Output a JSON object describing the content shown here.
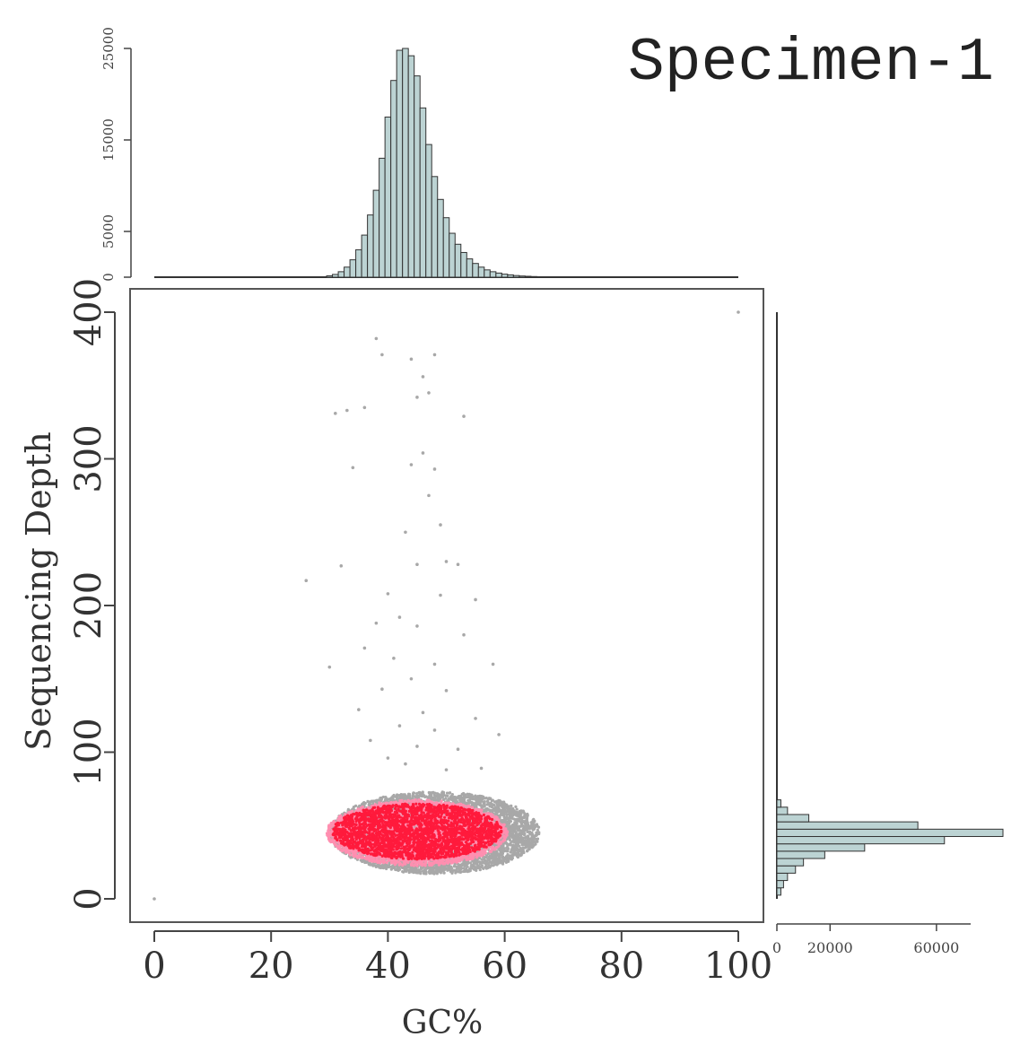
{
  "chart_data": {
    "type": "scatter",
    "title": "Specimen-1",
    "xlabel": "GC%",
    "ylabel": "Sequencing Depth",
    "xlim": [
      0,
      100
    ],
    "ylim": [
      0,
      400
    ],
    "x_ticks": [
      "0",
      "20",
      "40",
      "60",
      "80",
      "100"
    ],
    "y_ticks": [
      "0",
      "100",
      "200",
      "300",
      "400"
    ],
    "marginal_top": {
      "type": "histogram",
      "axis_ticks": [
        "0",
        "5000",
        "15000",
        "25000"
      ],
      "bin_width": 1,
      "bins": [
        {
          "x": 30,
          "count": 150
        },
        {
          "x": 31,
          "count": 300
        },
        {
          "x": 32,
          "count": 600
        },
        {
          "x": 33,
          "count": 1100
        },
        {
          "x": 34,
          "count": 1900
        },
        {
          "x": 35,
          "count": 3000
        },
        {
          "x": 36,
          "count": 4600
        },
        {
          "x": 37,
          "count": 6800
        },
        {
          "x": 38,
          "count": 9500
        },
        {
          "x": 39,
          "count": 13000
        },
        {
          "x": 40,
          "count": 17500
        },
        {
          "x": 41,
          "count": 21500
        },
        {
          "x": 42,
          "count": 24800
        },
        {
          "x": 43,
          "count": 25000
        },
        {
          "x": 44,
          "count": 24200
        },
        {
          "x": 45,
          "count": 22000
        },
        {
          "x": 46,
          "count": 18500
        },
        {
          "x": 47,
          "count": 14500
        },
        {
          "x": 48,
          "count": 11000
        },
        {
          "x": 49,
          "count": 8500
        },
        {
          "x": 50,
          "count": 6500
        },
        {
          "x": 51,
          "count": 4800
        },
        {
          "x": 52,
          "count": 3600
        },
        {
          "x": 53,
          "count": 2700
        },
        {
          "x": 54,
          "count": 2000
        },
        {
          "x": 55,
          "count": 1500
        },
        {
          "x": 56,
          "count": 1100
        },
        {
          "x": 57,
          "count": 800
        },
        {
          "x": 58,
          "count": 600
        },
        {
          "x": 59,
          "count": 450
        },
        {
          "x": 60,
          "count": 330
        },
        {
          "x": 61,
          "count": 250
        },
        {
          "x": 62,
          "count": 180
        },
        {
          "x": 63,
          "count": 130
        },
        {
          "x": 64,
          "count": 100
        },
        {
          "x": 65,
          "count": 70
        }
      ]
    },
    "marginal_right": {
      "type": "histogram",
      "axis_ticks": [
        "0",
        "20000",
        "60000"
      ],
      "bin_width": 5,
      "bins": [
        {
          "y": 5,
          "count": 1500
        },
        {
          "y": 10,
          "count": 2500
        },
        {
          "y": 15,
          "count": 4000
        },
        {
          "y": 20,
          "count": 7000
        },
        {
          "y": 25,
          "count": 10000
        },
        {
          "y": 30,
          "count": 18000
        },
        {
          "y": 35,
          "count": 33000
        },
        {
          "y": 40,
          "count": 63000
        },
        {
          "y": 45,
          "count": 85000
        },
        {
          "y": 50,
          "count": 53000
        },
        {
          "y": 55,
          "count": 12000
        },
        {
          "y": 60,
          "count": 4000
        },
        {
          "y": 65,
          "count": 1500
        }
      ]
    },
    "series": [
      {
        "color": "#a8a8a8",
        "points": [
          [
            0,
            0
          ],
          [
            100,
            400
          ],
          [
            38,
            382
          ],
          [
            39,
            371
          ],
          [
            44,
            368
          ],
          [
            48,
            371
          ],
          [
            46,
            356
          ],
          [
            31,
            331
          ],
          [
            33,
            333
          ],
          [
            36,
            335
          ],
          [
            53,
            329
          ],
          [
            47,
            345
          ],
          [
            45,
            342
          ],
          [
            34,
            294
          ],
          [
            44,
            296
          ],
          [
            48,
            293
          ],
          [
            46,
            304
          ],
          [
            47,
            275
          ],
          [
            43,
            250
          ],
          [
            49,
            255
          ],
          [
            50,
            230
          ],
          [
            45,
            228
          ],
          [
            52,
            228
          ],
          [
            26,
            217
          ],
          [
            32,
            227
          ],
          [
            40,
            208
          ],
          [
            49,
            207
          ],
          [
            55,
            204
          ],
          [
            42,
            192
          ],
          [
            38,
            188
          ],
          [
            45,
            186
          ],
          [
            53,
            180
          ],
          [
            36,
            171
          ],
          [
            41,
            164
          ],
          [
            48,
            160
          ],
          [
            58,
            160
          ],
          [
            30,
            158
          ],
          [
            44,
            150
          ],
          [
            39,
            143
          ],
          [
            50,
            142
          ],
          [
            35,
            129
          ],
          [
            46,
            127
          ],
          [
            55,
            123
          ],
          [
            42,
            118
          ],
          [
            48,
            115
          ],
          [
            59,
            112
          ],
          [
            37,
            108
          ],
          [
            45,
            104
          ],
          [
            52,
            102
          ],
          [
            40,
            96
          ],
          [
            43,
            92
          ],
          [
            50,
            88
          ],
          [
            56,
            89
          ]
        ]
      },
      {
        "color": "#a8a8a8",
        "cloud": {
          "cx": 48,
          "cy": 45,
          "sx": 36,
          "sy": 56
        }
      },
      {
        "color": "#ff8fb0",
        "cloud": {
          "cx": 45,
          "cy": 45,
          "sx": 31,
          "sy": 45
        }
      },
      {
        "color": "#ff1a3c",
        "cloud": {
          "cx": 45,
          "cy": 46,
          "sx": 29,
          "sy": 38
        }
      }
    ]
  }
}
